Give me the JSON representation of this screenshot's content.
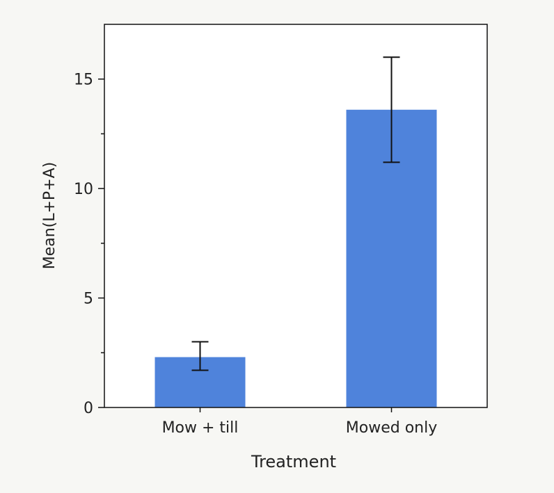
{
  "chart_data": {
    "type": "bar",
    "categories": [
      "Mow + till",
      "Mowed only"
    ],
    "values": [
      2.3,
      13.6
    ],
    "error_low": [
      1.7,
      11.2
    ],
    "error_high": [
      3.0,
      16.0
    ],
    "xlabel": "Treatment",
    "ylabel": "Mean(L+P+A)",
    "ylim": [
      0,
      17.5
    ],
    "yticks": [
      0,
      5,
      10,
      15
    ],
    "ytick_labels": [
      "0",
      "5",
      "10",
      "15"
    ],
    "grid": false,
    "legend": "none",
    "bar_color": "#4f83db",
    "error_bar_color": "#111111",
    "background_color": "#f7f7f4",
    "plot_background_color": "#ffffff"
  }
}
